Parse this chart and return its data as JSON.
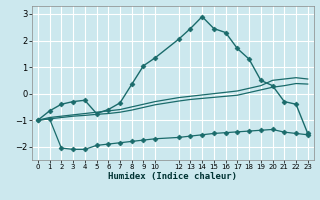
{
  "xlabel": "Humidex (Indice chaleur)",
  "bg_color": "#cce8ee",
  "grid_color": "#ffffff",
  "line_color": "#1a6b6b",
  "series1_x": [
    0,
    1,
    2,
    3,
    4,
    5,
    6,
    7,
    8,
    9,
    10,
    12,
    13,
    14,
    15,
    16,
    17,
    18,
    19,
    20,
    21,
    22,
    23
  ],
  "series1_y": [
    -1.0,
    -0.65,
    -0.4,
    -0.3,
    -0.25,
    -0.75,
    -0.6,
    -0.35,
    0.35,
    1.05,
    1.35,
    2.05,
    2.45,
    2.9,
    2.45,
    2.3,
    1.7,
    1.3,
    0.5,
    0.3,
    -0.3,
    -0.4,
    -1.5
  ],
  "series2_x": [
    0,
    1,
    2,
    3,
    4,
    5,
    6,
    7,
    8,
    9,
    10,
    12,
    13,
    14,
    15,
    16,
    17,
    18,
    19,
    20,
    21,
    22,
    23
  ],
  "series2_y": [
    -1.0,
    -0.9,
    -0.85,
    -0.8,
    -0.75,
    -0.7,
    -0.65,
    -0.6,
    -0.5,
    -0.4,
    -0.3,
    -0.15,
    -0.1,
    -0.05,
    0.0,
    0.05,
    0.1,
    0.2,
    0.3,
    0.5,
    0.55,
    0.6,
    0.55
  ],
  "series3_x": [
    0,
    1,
    2,
    3,
    4,
    5,
    6,
    7,
    8,
    9,
    10,
    12,
    13,
    14,
    15,
    16,
    17,
    18,
    19,
    20,
    21,
    22,
    23
  ],
  "series3_y": [
    -1.0,
    -0.95,
    -0.9,
    -0.85,
    -0.82,
    -0.78,
    -0.75,
    -0.7,
    -0.62,
    -0.52,
    -0.42,
    -0.28,
    -0.22,
    -0.18,
    -0.14,
    -0.1,
    -0.06,
    0.04,
    0.14,
    0.24,
    0.3,
    0.38,
    0.36
  ],
  "series4_x": [
    0,
    1,
    2,
    3,
    4,
    5,
    6,
    7,
    8,
    9,
    10,
    12,
    13,
    14,
    15,
    16,
    17,
    18,
    19,
    20,
    21,
    22,
    23
  ],
  "series4_y": [
    -1.0,
    -0.95,
    -2.05,
    -2.1,
    -2.1,
    -1.95,
    -1.9,
    -1.85,
    -1.8,
    -1.75,
    -1.7,
    -1.65,
    -1.6,
    -1.55,
    -1.5,
    -1.47,
    -1.44,
    -1.41,
    -1.38,
    -1.35,
    -1.45,
    -1.5,
    -1.55
  ],
  "xlim": [
    -0.5,
    23.5
  ],
  "ylim": [
    -2.5,
    3.3
  ],
  "xticks": [
    0,
    1,
    2,
    3,
    4,
    5,
    6,
    7,
    8,
    9,
    10,
    12,
    13,
    14,
    15,
    16,
    17,
    18,
    19,
    20,
    21,
    22,
    23
  ],
  "yticks": [
    -2,
    -1,
    0,
    1,
    2,
    3
  ]
}
